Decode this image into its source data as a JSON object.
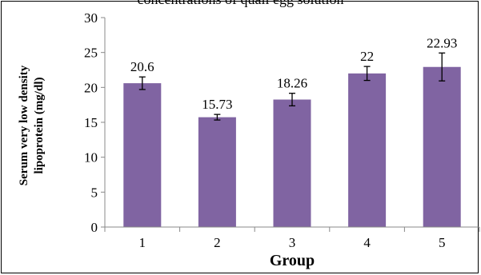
{
  "chart_data": {
    "type": "bar",
    "title": "concentrations of quail egg solution",
    "ylabel_line1": "Serum very low density",
    "ylabel_line2": "lipoprotein (mg/dl)",
    "xlabel": "Group",
    "categories": [
      "1",
      "2",
      "3",
      "4",
      "5"
    ],
    "values": [
      20.6,
      15.73,
      18.26,
      22,
      22.93
    ],
    "value_labels": [
      "20.6",
      "15.73",
      "18.26",
      "22",
      "22.93"
    ],
    "errors": [
      0.9,
      0.4,
      0.9,
      1.0,
      2.0
    ],
    "ylim": [
      0,
      30
    ],
    "yticks": [
      0,
      5,
      10,
      15,
      20,
      25,
      30
    ],
    "grid": false,
    "legend": "none",
    "bar_color": "#8064a2"
  }
}
